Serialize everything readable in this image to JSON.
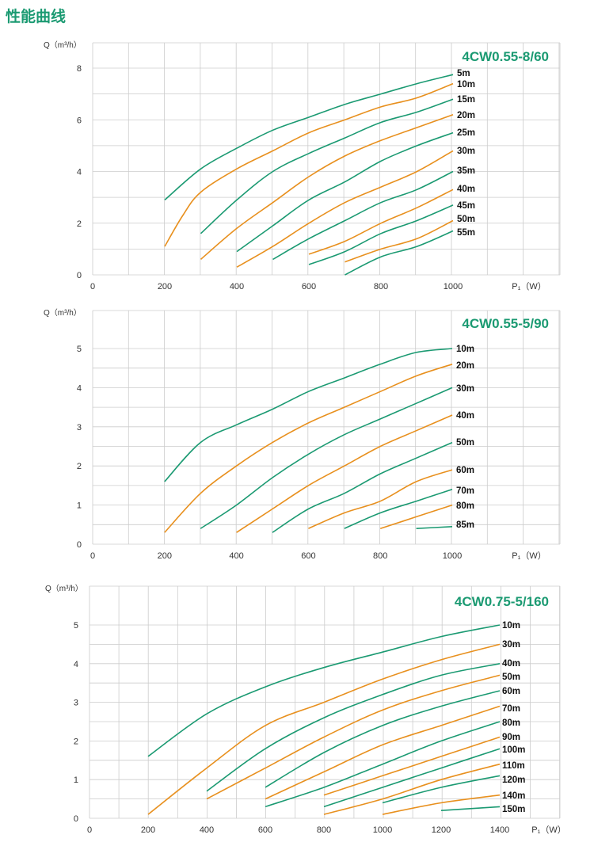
{
  "page": {
    "title": "性能曲线"
  },
  "colors": {
    "green": "#1b9a72",
    "orange": "#e8901e",
    "grid": "#cccccc",
    "title_green": "#1b9a72"
  },
  "chart_data": [
    {
      "type": "line",
      "title": "4CW0.55-8/60",
      "ylabel": "Q（m³/h）",
      "xlabel": "P₁（W）",
      "xlim": [
        0,
        1300
      ],
      "ylim": [
        0,
        8
      ],
      "grid": true,
      "xticks": [
        0,
        200,
        400,
        600,
        800,
        1000
      ],
      "yticks": [
        0,
        2,
        4,
        6,
        8
      ],
      "series": [
        {
          "name": "5m",
          "color": "green",
          "x": [
            200,
            300,
            400,
            500,
            600,
            700,
            800,
            900,
            1000
          ],
          "y": [
            2.9,
            4.1,
            4.9,
            5.6,
            6.1,
            6.6,
            7.0,
            7.4,
            7.75
          ]
        },
        {
          "name": "10m",
          "color": "orange",
          "x": [
            200,
            250,
            300,
            400,
            500,
            600,
            700,
            800,
            900,
            1000
          ],
          "y": [
            1.1,
            2.3,
            3.2,
            4.1,
            4.8,
            5.5,
            6.0,
            6.5,
            6.85,
            7.4
          ]
        },
        {
          "name": "15m",
          "color": "green",
          "x": [
            300,
            400,
            500,
            600,
            700,
            800,
            900,
            1000
          ],
          "y": [
            1.6,
            2.9,
            4.0,
            4.7,
            5.3,
            5.9,
            6.3,
            6.8
          ]
        },
        {
          "name": "20m",
          "color": "orange",
          "x": [
            300,
            400,
            500,
            600,
            700,
            800,
            900,
            1000
          ],
          "y": [
            0.6,
            1.8,
            2.8,
            3.8,
            4.6,
            5.2,
            5.7,
            6.2
          ]
        },
        {
          "name": "25m",
          "color": "green",
          "x": [
            400,
            500,
            600,
            700,
            800,
            900,
            1000
          ],
          "y": [
            0.9,
            1.9,
            2.9,
            3.6,
            4.4,
            5.0,
            5.5
          ]
        },
        {
          "name": "30m",
          "color": "orange",
          "x": [
            400,
            500,
            600,
            700,
            800,
            900,
            1000
          ],
          "y": [
            0.3,
            1.1,
            2.0,
            2.8,
            3.4,
            4.0,
            4.8
          ]
        },
        {
          "name": "35m",
          "color": "green",
          "x": [
            500,
            600,
            700,
            800,
            900,
            1000
          ],
          "y": [
            0.6,
            1.4,
            2.1,
            2.8,
            3.3,
            4.0
          ]
        },
        {
          "name": "40m",
          "color": "orange",
          "x": [
            600,
            700,
            800,
            900,
            1000
          ],
          "y": [
            0.8,
            1.3,
            2.0,
            2.6,
            3.3
          ]
        },
        {
          "name": "45m",
          "color": "green",
          "x": [
            600,
            700,
            800,
            900,
            1000
          ],
          "y": [
            0.4,
            0.9,
            1.6,
            2.1,
            2.7
          ]
        },
        {
          "name": "50m",
          "color": "orange",
          "x": [
            700,
            800,
            900,
            1000
          ],
          "y": [
            0.5,
            1.0,
            1.4,
            2.1
          ]
        },
        {
          "name": "55m",
          "color": "green",
          "x": [
            700,
            800,
            900,
            1000
          ],
          "y": [
            0.0,
            0.7,
            1.1,
            1.7
          ]
        }
      ]
    },
    {
      "type": "line",
      "title": "4CW0.55-5/90",
      "ylabel": "Q（m³/h）",
      "xlabel": "P₁（W）",
      "xlim": [
        0,
        1300
      ],
      "ylim": [
        0,
        5
      ],
      "grid": true,
      "xticks": [
        0,
        200,
        400,
        600,
        800,
        1000
      ],
      "yticks": [
        0,
        1,
        2,
        3,
        4,
        5
      ],
      "series": [
        {
          "name": "10m",
          "color": "green",
          "x": [
            200,
            300,
            400,
            500,
            600,
            700,
            800,
            900,
            1000
          ],
          "y": [
            1.6,
            2.6,
            3.05,
            3.45,
            3.9,
            4.25,
            4.6,
            4.9,
            5.0
          ]
        },
        {
          "name": "20m",
          "color": "orange",
          "x": [
            200,
            300,
            400,
            500,
            600,
            700,
            800,
            900,
            1000
          ],
          "y": [
            0.3,
            1.3,
            2.0,
            2.6,
            3.1,
            3.5,
            3.9,
            4.3,
            4.6
          ]
        },
        {
          "name": "30m",
          "color": "green",
          "x": [
            300,
            400,
            500,
            600,
            700,
            800,
            900,
            1000
          ],
          "y": [
            0.4,
            1.0,
            1.7,
            2.3,
            2.8,
            3.2,
            3.6,
            4.0
          ]
        },
        {
          "name": "40m",
          "color": "orange",
          "x": [
            400,
            500,
            600,
            700,
            800,
            900,
            1000
          ],
          "y": [
            0.3,
            0.9,
            1.5,
            2.0,
            2.5,
            2.9,
            3.3
          ]
        },
        {
          "name": "50m",
          "color": "green",
          "x": [
            500,
            600,
            700,
            800,
            900,
            1000
          ],
          "y": [
            0.3,
            0.9,
            1.3,
            1.8,
            2.2,
            2.6
          ]
        },
        {
          "name": "60m",
          "color": "orange",
          "x": [
            600,
            700,
            800,
            900,
            1000
          ],
          "y": [
            0.4,
            0.8,
            1.1,
            1.6,
            1.9
          ]
        },
        {
          "name": "70m",
          "color": "green",
          "x": [
            700,
            800,
            900,
            1000
          ],
          "y": [
            0.4,
            0.8,
            1.1,
            1.4
          ]
        },
        {
          "name": "80m",
          "color": "orange",
          "x": [
            800,
            900,
            1000
          ],
          "y": [
            0.4,
            0.7,
            1.0
          ]
        },
        {
          "name": "85m",
          "color": "green",
          "x": [
            900,
            1000
          ],
          "y": [
            0.4,
            0.45
          ]
        }
      ]
    },
    {
      "type": "line",
      "title": "4CW0.75-5/160",
      "ylabel": "Q（m³/h）",
      "xlabel": "P₁（W）",
      "xlim": [
        0,
        1600
      ],
      "ylim": [
        0,
        5
      ],
      "grid": true,
      "xticks": [
        0,
        200,
        400,
        600,
        800,
        1000,
        1200,
        1400
      ],
      "yticks": [
        0,
        1,
        2,
        3,
        4,
        5
      ],
      "series": [
        {
          "name": "10m",
          "color": "green",
          "x": [
            200,
            400,
            600,
            800,
            1000,
            1200,
            1400
          ],
          "y": [
            1.6,
            2.7,
            3.4,
            3.9,
            4.3,
            4.7,
            5.0
          ]
        },
        {
          "name": "30m",
          "color": "orange",
          "x": [
            200,
            400,
            600,
            800,
            1000,
            1200,
            1400
          ],
          "y": [
            0.1,
            1.3,
            2.4,
            3.0,
            3.6,
            4.1,
            4.5
          ]
        },
        {
          "name": "40m",
          "color": "green",
          "x": [
            400,
            600,
            800,
            1000,
            1200,
            1400
          ],
          "y": [
            0.7,
            1.8,
            2.6,
            3.2,
            3.7,
            4.0
          ]
        },
        {
          "name": "50m",
          "color": "orange",
          "x": [
            400,
            600,
            800,
            1000,
            1200,
            1400
          ],
          "y": [
            0.5,
            1.3,
            2.1,
            2.8,
            3.3,
            3.7
          ]
        },
        {
          "name": "60m",
          "color": "green",
          "x": [
            600,
            800,
            1000,
            1200,
            1400
          ],
          "y": [
            0.8,
            1.7,
            2.4,
            2.9,
            3.3
          ]
        },
        {
          "name": "70m",
          "color": "orange",
          "x": [
            600,
            800,
            1000,
            1200,
            1400
          ],
          "y": [
            0.5,
            1.2,
            1.9,
            2.4,
            2.9
          ]
        },
        {
          "name": "80m",
          "color": "green",
          "x": [
            600,
            800,
            1000,
            1200,
            1400
          ],
          "y": [
            0.3,
            0.8,
            1.4,
            2.0,
            2.5
          ]
        },
        {
          "name": "90m",
          "color": "orange",
          "x": [
            800,
            1000,
            1200,
            1400
          ],
          "y": [
            0.6,
            1.1,
            1.6,
            2.1
          ]
        },
        {
          "name": "100m",
          "color": "green",
          "x": [
            800,
            1000,
            1200,
            1400
          ],
          "y": [
            0.3,
            0.8,
            1.3,
            1.8
          ]
        },
        {
          "name": "110m",
          "color": "orange",
          "x": [
            800,
            1000,
            1200,
            1400
          ],
          "y": [
            0.1,
            0.5,
            1.0,
            1.4
          ]
        },
        {
          "name": "120m",
          "color": "green",
          "x": [
            1000,
            1200,
            1400
          ],
          "y": [
            0.4,
            0.8,
            1.1
          ]
        },
        {
          "name": "140m",
          "color": "orange",
          "x": [
            1000,
            1200,
            1400
          ],
          "y": [
            0.1,
            0.4,
            0.6
          ]
        },
        {
          "name": "150m",
          "color": "green",
          "x": [
            1200,
            1400
          ],
          "y": [
            0.2,
            0.3
          ]
        }
      ]
    }
  ]
}
